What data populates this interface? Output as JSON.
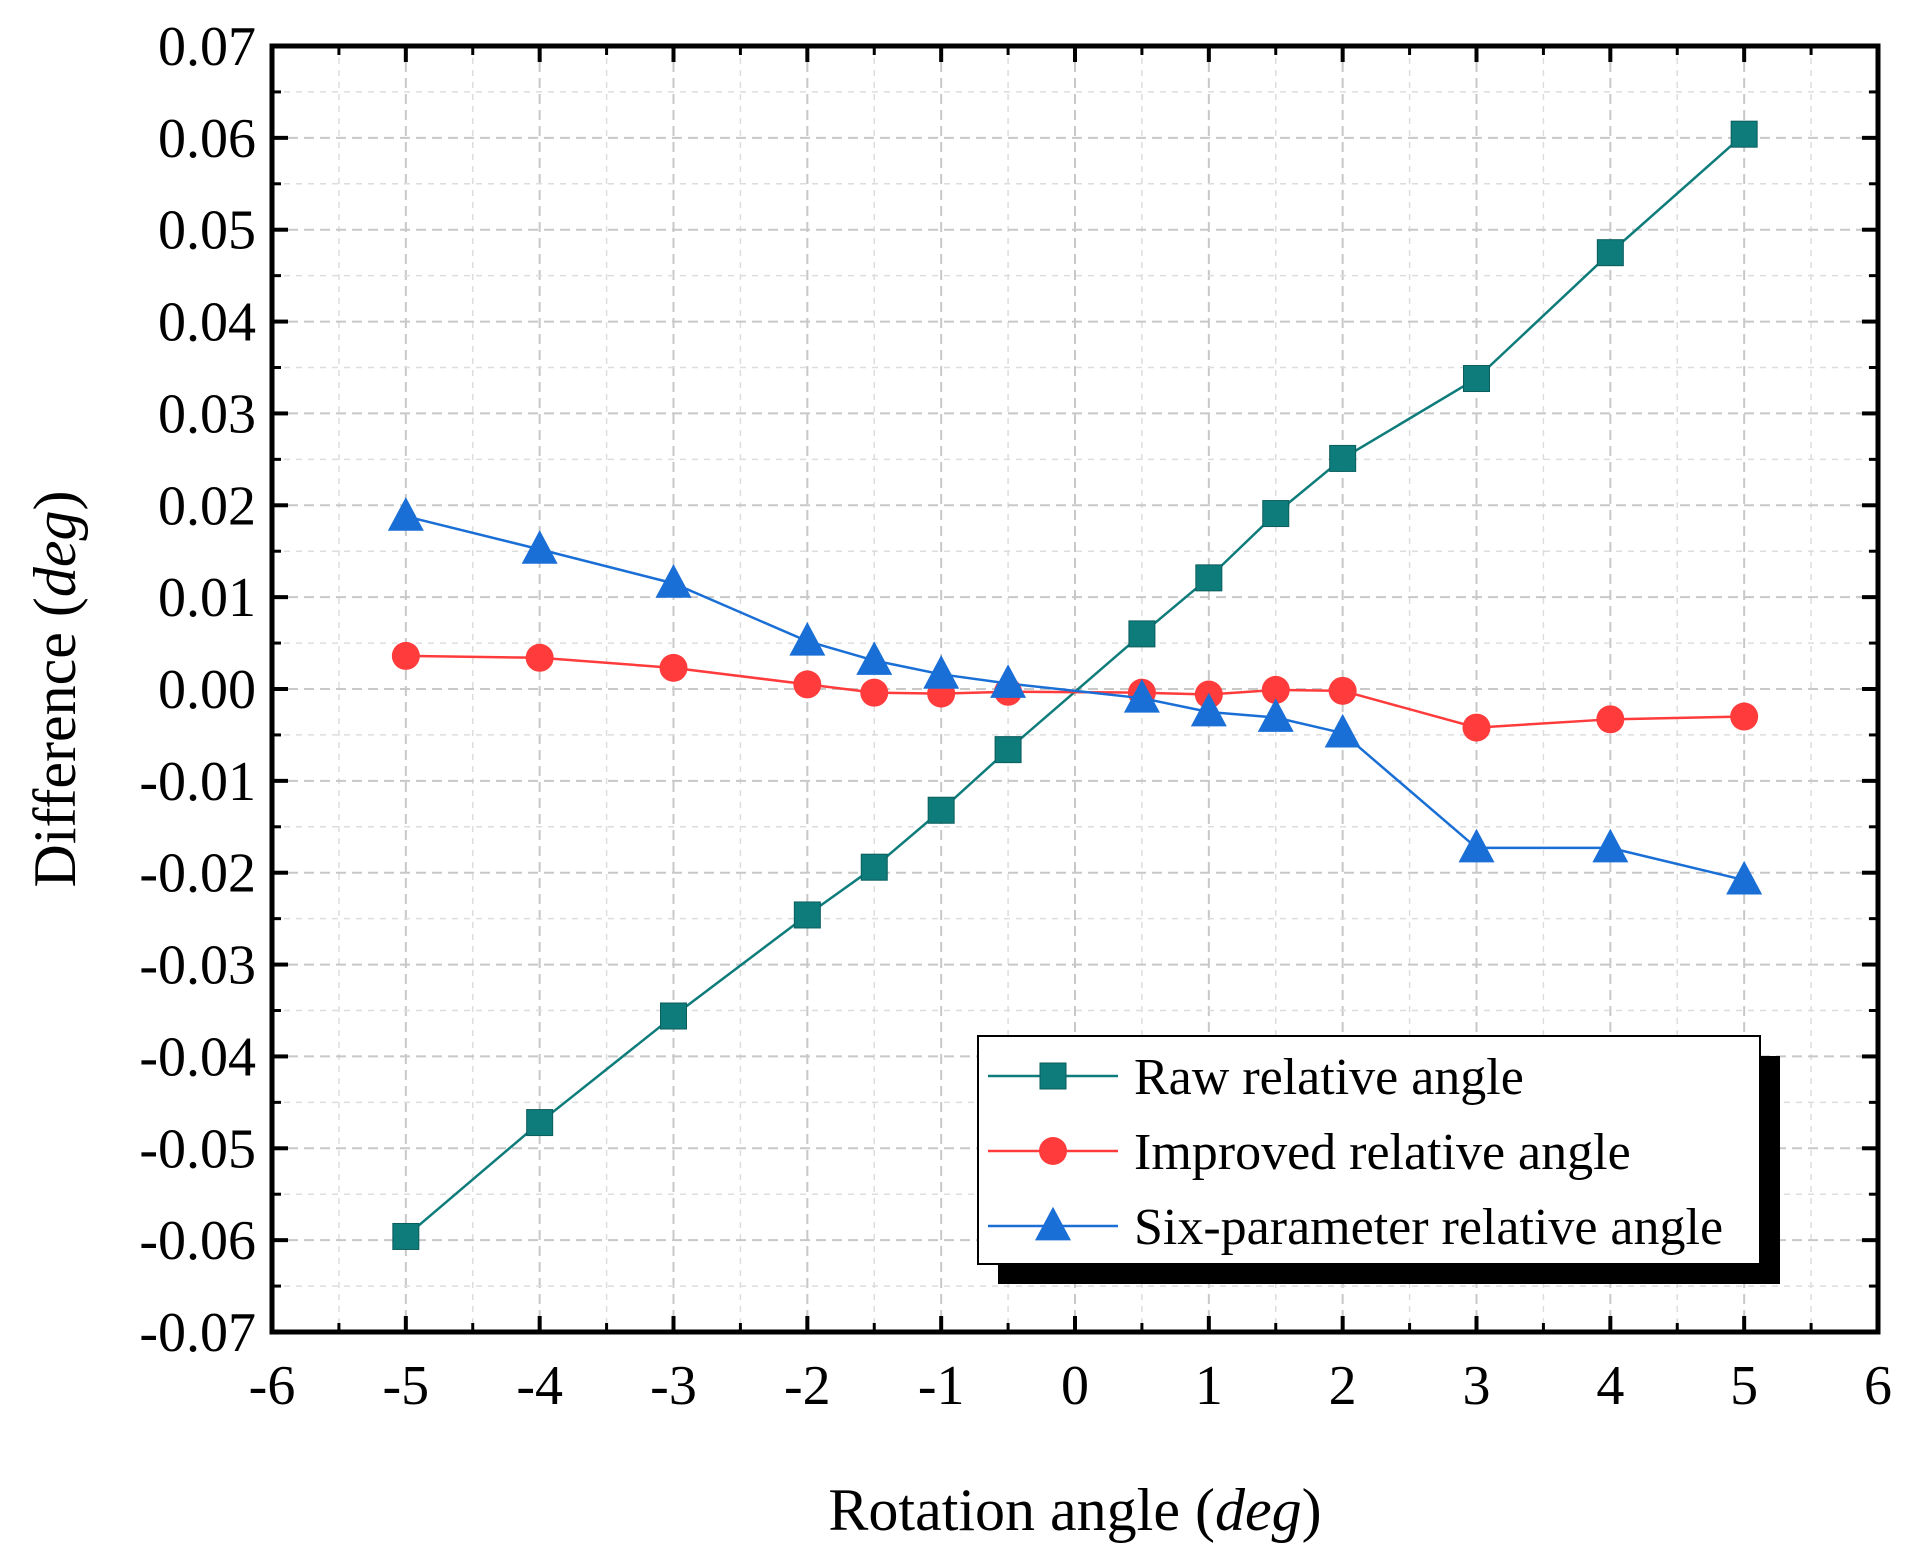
{
  "chart_data": {
    "type": "line",
    "title": "",
    "xlabel": "Rotation angle (",
    "xlabel_unit": "deg",
    "xlabel_close": ")",
    "ylabel": "Difference (",
    "ylabel_unit": "deg",
    "ylabel_close": ")",
    "xlim": [
      -6,
      6
    ],
    "ylim": [
      -0.07,
      0.07
    ],
    "x_ticks": [
      -6,
      -5,
      -4,
      -3,
      -2,
      -1,
      0,
      1,
      2,
      3,
      4,
      5,
      6
    ],
    "x_tick_labels": [
      "-6",
      "-5",
      "-4",
      "-3",
      "-2",
      "-1",
      "0",
      "1",
      "2",
      "3",
      "4",
      "5",
      "6"
    ],
    "y_ticks": [
      0.07,
      0.06,
      0.05,
      0.04,
      0.03,
      0.02,
      0.01,
      0.0,
      -0.01,
      -0.02,
      -0.03,
      -0.04,
      -0.05,
      -0.06,
      -0.07
    ],
    "y_tick_labels": [
      "0.07",
      "0.06",
      "0.05",
      "0.04",
      "0.03",
      "0.02",
      "0.01",
      "0.00",
      "-0.01",
      "-0.02",
      "-0.03",
      "-0.04",
      "-0.05",
      "-0.06",
      "-0.07"
    ],
    "grid": true,
    "legend_position": "bottom-right",
    "x": [
      -5,
      -4,
      -3,
      -2,
      -1.5,
      -1,
      -0.5,
      0.5,
      1,
      1.5,
      2,
      3,
      4,
      5
    ],
    "series": [
      {
        "name": "Raw relative angle",
        "color": "#0e7c7b",
        "marker": "square",
        "values": [
          -0.0596,
          -0.0472,
          -0.0356,
          -0.0246,
          -0.0194,
          -0.0132,
          -0.0066,
          0.006,
          0.0121,
          0.0191,
          0.0251,
          0.0338,
          0.0475,
          0.0604
        ]
      },
      {
        "name": "Improved relative angle",
        "color": "#ff3b3b",
        "marker": "circle",
        "values": [
          0.0036,
          0.0034,
          0.0023,
          0.0005,
          -0.0004,
          -0.0005,
          -0.0003,
          -0.0004,
          -0.0006,
          -0.0001,
          -0.0002,
          -0.0042,
          -0.0033,
          -0.003
        ]
      },
      {
        "name": "Six-parameter relative angle",
        "color": "#1a6fd6",
        "marker": "triangle",
        "values": [
          0.0188,
          0.0152,
          0.0115,
          0.0052,
          0.0031,
          0.0016,
          0.0006,
          -0.001,
          -0.0025,
          -0.0031,
          -0.0048,
          -0.0173,
          -0.0173,
          -0.0208
        ]
      }
    ]
  }
}
